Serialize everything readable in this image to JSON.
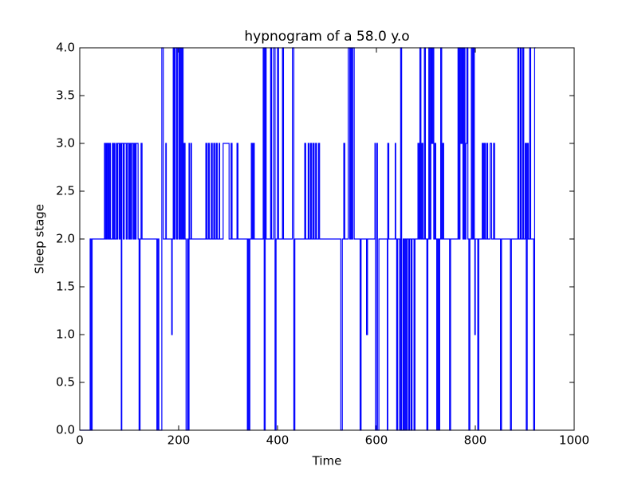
{
  "chart_data": {
    "type": "line",
    "title": "hypnogram of a 58.0 y.o",
    "x_label": "Time",
    "y_label": "Sleep stage",
    "drawstyle": "steps-post",
    "grid": false,
    "xlim": [
      0,
      1000
    ],
    "xticks": [
      0,
      200,
      400,
      600,
      800,
      1000
    ],
    "ylim": [
      0,
      4
    ],
    "yticks": [
      {
        "value": 0,
        "label": "0.0"
      },
      {
        "value": 0.5,
        "label": "0.5"
      },
      {
        "value": 1,
        "label": "1.0"
      },
      {
        "value": 1.5,
        "label": "1.5"
      },
      {
        "value": 2,
        "label": "2.0"
      },
      {
        "value": 2.5,
        "label": "2.5"
      },
      {
        "value": 3,
        "label": "3.0"
      },
      {
        "value": 3.5,
        "label": "3.5"
      },
      {
        "value": 4,
        "label": "4.0"
      }
    ],
    "series": [
      {
        "color": "#0000ff",
        "x": [
          0,
          21,
          23,
          25,
          50,
          52,
          54,
          56,
          57,
          59,
          61,
          62,
          66,
          68,
          70,
          71,
          74,
          76,
          77,
          80,
          82,
          84,
          85,
          88,
          90,
          94,
          96,
          99,
          101,
          103,
          105,
          108,
          110,
          112,
          114,
          118,
          120,
          122,
          124,
          126,
          156,
          158,
          160,
          166,
          169,
          174,
          175,
          186,
          187,
          189,
          191,
          193,
          196,
          198,
          201,
          203,
          205,
          207,
          209,
          211,
          213,
          215,
          218,
          219,
          221,
          222,
          225,
          226,
          255,
          257,
          260,
          262,
          266,
          268,
          271,
          273,
          276,
          278,
          282,
          283,
          290,
          302,
          306,
          308,
          318,
          320,
          339,
          340,
          342,
          344,
          347,
          349,
          351,
          353,
          371,
          373,
          375,
          377,
          386,
          388,
          392,
          395,
          397,
          400,
          402,
          410,
          412,
          430,
          433,
          435,
          455,
          457,
          462,
          464,
          467,
          469,
          472,
          474,
          477,
          479,
          483,
          485,
          528,
          531,
          534,
          536,
          543,
          546,
          548,
          550,
          552,
          555,
          567,
          569,
          580,
          582,
          597,
          598,
          601,
          602,
          605,
          622,
          623,
          625,
          638,
          639,
          641,
          643,
          647,
          649,
          651,
          654,
          656,
          658,
          660,
          662,
          665,
          667,
          670,
          672,
          676,
          678,
          684,
          686,
          688,
          690,
          692,
          694,
          697,
          699,
          702,
          704,
          706,
          708,
          710,
          712,
          714,
          716,
          718,
          720,
          722,
          724,
          726,
          728,
          730,
          732,
          734,
          736,
          748,
          750,
          765,
          767,
          769,
          771,
          773,
          775,
          777,
          779,
          781,
          783,
          785,
          787,
          789,
          792,
          794,
          796,
          798,
          799,
          800,
          805,
          807,
          814,
          816,
          818,
          820,
          823,
          825,
          830,
          833,
          837,
          839,
          851,
          853,
          871,
          873,
          886,
          888,
          891,
          893,
          896,
          898,
          901,
          903,
          905,
          907,
          910,
          912,
          918,
          920,
          922
        ],
        "values": [
          0,
          2,
          0,
          2,
          3,
          2,
          3,
          2,
          3,
          2,
          3,
          2,
          3,
          2,
          3,
          2,
          3,
          2,
          3,
          2,
          3,
          0,
          3,
          2,
          3,
          2,
          3,
          2,
          3,
          2,
          3,
          2,
          3,
          2,
          3,
          2,
          0,
          2,
          3,
          2,
          0,
          2,
          0,
          4,
          2,
          3,
          2,
          1,
          2,
          4,
          2,
          4,
          2,
          4,
          2,
          4,
          2,
          4,
          2,
          3,
          2,
          0,
          2,
          0,
          3,
          2,
          3,
          2,
          3,
          2,
          3,
          2,
          3,
          2,
          3,
          2,
          3,
          2,
          3,
          2,
          3,
          2,
          3,
          2,
          3,
          2,
          0,
          2,
          0,
          2,
          3,
          2,
          3,
          2,
          4,
          0,
          4,
          2,
          4,
          2,
          4,
          0,
          2,
          4,
          2,
          4,
          2,
          4,
          0,
          2,
          3,
          2,
          3,
          2,
          3,
          2,
          3,
          2,
          3,
          2,
          3,
          2,
          0,
          2,
          3,
          2,
          4,
          2,
          4,
          2,
          4,
          2,
          0,
          2,
          1,
          2,
          3,
          0,
          3,
          0,
          2,
          0,
          3,
          2,
          3,
          2,
          0,
          2,
          0,
          4,
          0,
          2,
          0,
          2,
          0,
          2,
          0,
          2,
          0,
          2,
          0,
          2,
          3,
          2,
          4,
          2,
          3,
          2,
          4,
          2,
          0,
          2,
          4,
          2,
          4,
          3,
          4,
          2,
          3,
          2,
          0,
          2,
          0,
          2,
          4,
          2,
          3,
          2,
          0,
          2,
          4,
          2,
          4,
          3,
          4,
          2,
          4,
          2,
          3,
          4,
          2,
          0,
          2,
          4,
          2,
          4,
          2,
          1,
          2,
          0,
          2,
          3,
          2,
          3,
          2,
          3,
          2,
          3,
          2,
          3,
          2,
          0,
          2,
          0,
          2,
          4,
          2,
          4,
          2,
          4,
          2,
          3,
          0,
          3,
          2,
          4,
          2,
          0,
          4,
          4
        ]
      }
    ]
  }
}
